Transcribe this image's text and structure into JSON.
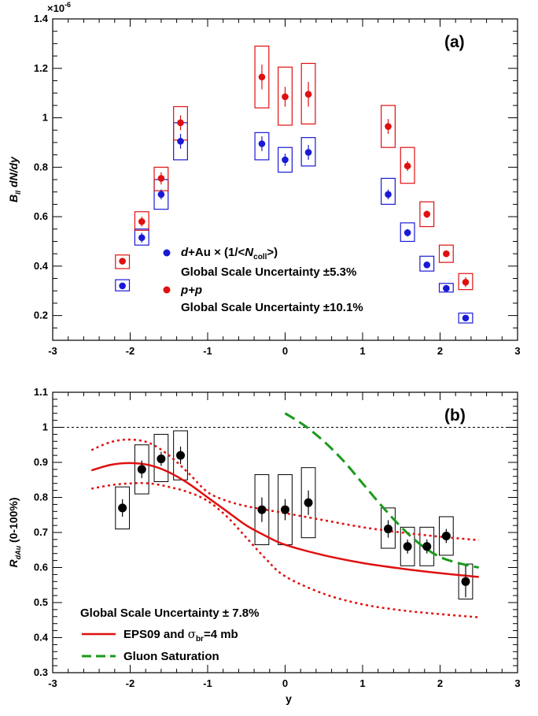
{
  "chart_data": [
    {
      "type": "scatter",
      "panel_label": "(a)",
      "ylabel_main": "B",
      "ylabel_sub": "ll",
      "ylabel_rest": " dN/dy",
      "exponent_label": "×10",
      "exponent_power": "-6",
      "xlim": [
        -3,
        3
      ],
      "ylim": [
        0.1,
        1.4
      ],
      "x_ticks": [
        "-3",
        "-2",
        "-1",
        "0",
        "1",
        "2",
        "3"
      ],
      "y_ticks": [
        "0.2",
        "0.4",
        "0.6",
        "0.8",
        "1",
        "1.2",
        "1.4"
      ],
      "legend": {
        "dau_prefix": "d",
        "dau_rest": "+Au × (1/<",
        "dau_n": "N",
        "dau_sub": "coll",
        "dau_close": ">)",
        "dau_scale": "Global Scale Uncertainty ±5.3%",
        "pp_label": "p+p",
        "pp_scale": "Global Scale Uncertainty ±10.1%"
      },
      "series": [
        {
          "name": "d+Au × (1/<Ncoll>)",
          "color": "#1a1ad6",
          "x": [
            -2.1,
            -1.85,
            -1.6,
            -1.35,
            -0.3,
            0.0,
            0.3,
            1.33,
            1.58,
            1.83,
            2.08,
            2.33
          ],
          "y": [
            0.32,
            0.515,
            0.69,
            0.905,
            0.895,
            0.83,
            0.86,
            0.69,
            0.535,
            0.405,
            0.31,
            0.19
          ],
          "stat": [
            0.01,
            0.02,
            0.02,
            0.03,
            0.03,
            0.025,
            0.03,
            0.02,
            0.015,
            0.012,
            0.01,
            0.008
          ],
          "sys_lo": [
            0.3,
            0.485,
            0.63,
            0.83,
            0.83,
            0.78,
            0.805,
            0.65,
            0.5,
            0.38,
            0.295,
            0.17
          ],
          "sys_hi": [
            0.345,
            0.55,
            0.75,
            0.98,
            0.94,
            0.88,
            0.92,
            0.755,
            0.575,
            0.44,
            0.33,
            0.21
          ]
        },
        {
          "name": "p+p",
          "color": "#e01010",
          "x": [
            -2.1,
            -1.85,
            -1.6,
            -1.35,
            -0.3,
            0.0,
            0.3,
            1.33,
            1.58,
            1.83,
            2.08,
            2.33
          ],
          "y": [
            0.42,
            0.58,
            0.755,
            0.98,
            1.165,
            1.085,
            1.095,
            0.965,
            0.805,
            0.61,
            0.45,
            0.335
          ],
          "stat": [
            0.01,
            0.02,
            0.025,
            0.03,
            0.05,
            0.04,
            0.05,
            0.03,
            0.02,
            0.015,
            0.012,
            0.02
          ],
          "sys_lo": [
            0.39,
            0.545,
            0.705,
            0.91,
            1.04,
            0.97,
            0.975,
            0.88,
            0.735,
            0.56,
            0.415,
            0.305
          ],
          "sys_hi": [
            0.445,
            0.62,
            0.8,
            1.045,
            1.29,
            1.205,
            1.22,
            1.05,
            0.88,
            0.66,
            0.485,
            0.37
          ]
        }
      ]
    },
    {
      "type": "scatter",
      "panel_label": "(b)",
      "ylabel_main": "R",
      "ylabel_sub": "dAu",
      "ylabel_rest": " (0-100%)",
      "xlabel": "y",
      "xlim": [
        -3,
        3
      ],
      "ylim": [
        0.3,
        1.1
      ],
      "x_ticks": [
        "-3",
        "-2",
        "-1",
        "0",
        "1",
        "2",
        "3"
      ],
      "y_ticks": [
        "0.3",
        "0.4",
        "0.5",
        "0.6",
        "0.7",
        "0.8",
        "0.9",
        "1",
        "1.1"
      ],
      "reference_line": 1.0,
      "scale_text": "Global Scale Uncertainty ± 7.8%",
      "legend": {
        "eps_label": "EPS09 and ",
        "eps_sigma": "σ",
        "eps_sub": "br",
        "eps_rest": "=4 mb",
        "gluon_label": "Gluon Saturation"
      },
      "points": {
        "color": "#000000",
        "x": [
          -2.1,
          -1.85,
          -1.6,
          -1.35,
          -0.3,
          0.0,
          0.3,
          1.33,
          1.58,
          1.83,
          2.08,
          2.33
        ],
        "y": [
          0.77,
          0.88,
          0.91,
          0.92,
          0.765,
          0.765,
          0.785,
          0.71,
          0.66,
          0.66,
          0.69,
          0.56
        ],
        "stat": [
          0.025,
          0.025,
          0.02,
          0.025,
          0.035,
          0.03,
          0.035,
          0.025,
          0.02,
          0.02,
          0.02,
          0.045
        ],
        "sys_lo": [
          0.71,
          0.81,
          0.845,
          0.85,
          0.665,
          0.665,
          0.685,
          0.655,
          0.605,
          0.605,
          0.635,
          0.51
        ],
        "sys_hi": [
          0.83,
          0.95,
          0.98,
          0.99,
          0.865,
          0.865,
          0.885,
          0.77,
          0.715,
          0.715,
          0.745,
          0.61
        ]
      },
      "curves": [
        {
          "name": "EPS09 central",
          "color": "#e01010",
          "style": "solid",
          "x": [
            -2.5,
            -2.25,
            -2.0,
            -1.75,
            -1.5,
            -1.25,
            -1.0,
            -0.75,
            -0.5,
            -0.25,
            0.0,
            0.5,
            1.0,
            1.5,
            2.0,
            2.5
          ],
          "y": [
            0.877,
            0.893,
            0.898,
            0.892,
            0.872,
            0.84,
            0.8,
            0.76,
            0.72,
            0.69,
            0.665,
            0.635,
            0.613,
            0.597,
            0.584,
            0.573
          ]
        },
        {
          "name": "EPS09 upper",
          "color": "#e01010",
          "style": "dotted",
          "x": [
            -2.5,
            -2.25,
            -2.0,
            -1.75,
            -1.5,
            -1.25,
            -1.0,
            -0.75,
            -0.5,
            -0.25,
            0.0,
            0.5,
            1.0,
            1.5,
            2.0,
            2.5
          ],
          "y": [
            0.935,
            0.958,
            0.965,
            0.955,
            0.92,
            0.87,
            0.815,
            0.79,
            0.775,
            0.765,
            0.755,
            0.735,
            0.715,
            0.7,
            0.688,
            0.678
          ]
        },
        {
          "name": "EPS09 lower",
          "color": "#e01010",
          "style": "dotted",
          "x": [
            -2.5,
            -2.25,
            -2.0,
            -1.75,
            -1.5,
            -1.25,
            -1.0,
            -0.75,
            -0.5,
            -0.25,
            0.0,
            0.5,
            1.0,
            1.5,
            2.0,
            2.5
          ],
          "y": [
            0.825,
            0.835,
            0.84,
            0.84,
            0.83,
            0.815,
            0.79,
            0.745,
            0.685,
            0.625,
            0.575,
            0.525,
            0.495,
            0.478,
            0.467,
            0.458
          ]
        },
        {
          "name": "Gluon Saturation",
          "color": "#1a9a1a",
          "style": "dashed",
          "x": [
            0.0,
            0.25,
            0.5,
            0.75,
            1.0,
            1.25,
            1.5,
            1.75,
            2.0,
            2.25,
            2.5
          ],
          "y": [
            1.04,
            1.005,
            0.96,
            0.905,
            0.84,
            0.775,
            0.715,
            0.665,
            0.63,
            0.612,
            0.6
          ]
        }
      ]
    }
  ]
}
